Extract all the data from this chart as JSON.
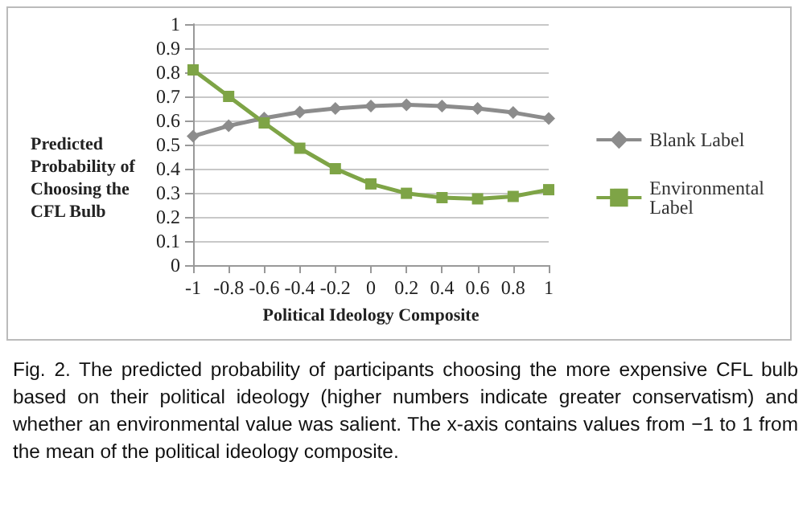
{
  "chart_data": {
    "type": "line",
    "xlabel": "Political Ideology Composite",
    "ylabel": "Predicted Probability of Choosing the CFL Bulb",
    "categories": [
      "-1",
      "-0.8",
      "-0.6",
      "-0.4",
      "-0.2",
      "0",
      "0.2",
      "0.4",
      "0.6",
      "0.8",
      "1"
    ],
    "series": [
      {
        "name": "Blank Label",
        "color": "#8c8c8c",
        "marker": "diamond",
        "values": [
          0.535,
          0.578,
          0.61,
          0.635,
          0.65,
          0.66,
          0.665,
          0.66,
          0.65,
          0.633,
          0.608
        ]
      },
      {
        "name": "Environmental Label",
        "color": "#7ea446",
        "marker": "square",
        "values": [
          0.81,
          0.7,
          0.59,
          0.485,
          0.4,
          0.337,
          0.298,
          0.28,
          0.275,
          0.285,
          0.313
        ]
      }
    ],
    "ylim": [
      0,
      1
    ],
    "yticks": [
      0,
      0.1,
      0.2,
      0.3,
      0.4,
      0.5,
      0.6,
      0.7,
      0.8,
      0.9,
      1
    ],
    "grid": "y",
    "legend": "right",
    "annotations": [
      "Fig. 2. The predicted probability of participants choosing the more expensive CFL bulb based on their political ideology (higher numbers indicate greater conservatism) and whether an environmental value was salient. The x-axis contains values from −1 to 1 from the mean of the political ideology composite."
    ]
  }
}
